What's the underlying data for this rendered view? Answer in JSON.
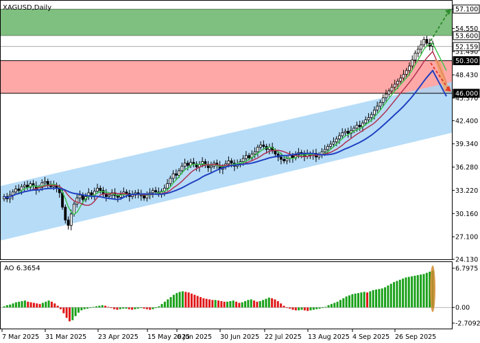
{
  "chart_data": [
    {
      "type": "candlestick",
      "symbol_label": "XAGUSD,Daily",
      "y_range": [
        24.13,
        58.2
      ],
      "y_ticks": [
        "57.100",
        "54.550",
        "51.490",
        "48.430",
        "45.370",
        "42.400",
        "39.340",
        "36.280",
        "33.220",
        "30.160",
        "27.100",
        "24.130"
      ],
      "x_ticks": [
        "7 Mar 2025",
        "31 Mar 2025",
        "23 Apr 2025",
        "15 May 2025",
        "6 Jun 2025",
        "30 Jun 2025",
        "22 Jul 2025",
        "13 Aug 2025",
        "4 Sep 2025",
        "26 Sep 2025"
      ],
      "price_markers": [
        {
          "label": "57.100",
          "value": 57.1,
          "style": "outline"
        },
        {
          "label": "53.600",
          "value": 53.6,
          "style": "outline"
        },
        {
          "label": "52.159",
          "value": 52.159,
          "style": "outline"
        },
        {
          "label": "50.300",
          "value": 50.3,
          "style": "dark"
        },
        {
          "label": "46.000",
          "value": 46.0,
          "style": "dark"
        }
      ],
      "zones": [
        {
          "name": "buy-zone",
          "from": 53.6,
          "to": 57.1,
          "color": "#7fbf7f"
        },
        {
          "name": "sell-zone",
          "from": 46.0,
          "to": 50.3,
          "color": "#ffa8a8"
        }
      ],
      "channel": {
        "color": "#a9d6f7",
        "upper_start": 33.8,
        "upper_end": 47.5,
        "lower_start": 26.6,
        "lower_end": 40.8
      },
      "candles_close": [
        32.4,
        32.1,
        32.6,
        33.0,
        33.4,
        33.2,
        33.7,
        33.9,
        33.6,
        34.1,
        33.8,
        33.3,
        33.6,
        34.2,
        34.4,
        34.0,
        33.7,
        33.9,
        33.5,
        32.9,
        31.0,
        29.3,
        28.6,
        30.1,
        31.4,
        32.2,
        32.6,
        32.0,
        32.4,
        32.9,
        32.6,
        33.1,
        33.5,
        33.2,
        32.8,
        32.4,
        32.6,
        32.9,
        32.5,
        32.3,
        32.7,
        33.0,
        32.8,
        32.4,
        32.6,
        32.9,
        32.7,
        32.5,
        32.2,
        32.6,
        32.9,
        33.2,
        33.0,
        32.8,
        33.1,
        33.5,
        34.1,
        34.8,
        35.4,
        35.2,
        35.8,
        36.4,
        36.8,
        36.5,
        36.9,
        36.7,
        36.3,
        36.6,
        37.0,
        36.6,
        36.2,
        36.4,
        36.8,
        36.5,
        36.0,
        36.3,
        36.7,
        37.1,
        36.8,
        36.4,
        36.7,
        37.0,
        37.4,
        37.8,
        37.5,
        38.0,
        38.3,
        38.9,
        39.2,
        39.0,
        38.6,
        38.9,
        38.4,
        38.0,
        37.6,
        37.3,
        37.1,
        37.4,
        37.8,
        37.5,
        37.9,
        38.2,
        38.0,
        37.7,
        38.0,
        37.8,
        38.1,
        37.6,
        37.9,
        38.3,
        38.6,
        39.0,
        39.3,
        39.6,
        40.0,
        40.4,
        40.8,
        41.0,
        40.7,
        41.1,
        41.4,
        41.8,
        41.6,
        42.1,
        42.5,
        42.8,
        43.2,
        43.8,
        44.3,
        44.8,
        45.4,
        45.9,
        46.3,
        46.8,
        47.2,
        47.6,
        48.0,
        48.5,
        49.0,
        49.6,
        50.4,
        51.3,
        51.8,
        52.4,
        53.1,
        52.6,
        52.2,
        52.6
      ],
      "ma_green_end": 49.0,
      "ma_red_end": 47.4,
      "ma_blue_end": 45.6,
      "forecast": [
        {
          "direction": "up",
          "from": 52.9,
          "to": 57.1,
          "color": "#2e8b2e"
        },
        {
          "direction": "down",
          "from": 50.0,
          "to": 46.2,
          "color": "#e0402a"
        }
      ]
    },
    {
      "type": "bar",
      "indicator_label": "AO 6.3654",
      "y_range": [
        -2.7092,
        6.7975
      ],
      "y_ticks": [
        "6.7975",
        "0.00",
        "-2.7092"
      ],
      "values": [
        0.2,
        0.4,
        0.5,
        0.7,
        0.9,
        1.0,
        1.1,
        1.2,
        1.0,
        0.9,
        0.8,
        0.7,
        0.6,
        0.8,
        1.0,
        1.2,
        1.0,
        0.7,
        0.3,
        -0.3,
        -1.0,
        -1.8,
        -2.4,
        -2.2,
        -1.5,
        -0.9,
        -0.5,
        -0.3,
        -0.2,
        -0.1,
        0.1,
        0.2,
        0.3,
        0.4,
        0.3,
        0.1,
        -0.1,
        -0.3,
        -0.4,
        -0.3,
        -0.2,
        -0.2,
        -0.3,
        -0.4,
        -0.3,
        -0.2,
        -0.1,
        -0.2,
        -0.3,
        -0.4,
        -0.3,
        -0.1,
        0.2,
        0.6,
        1.0,
        1.4,
        1.8,
        2.2,
        2.5,
        2.7,
        2.8,
        2.7,
        2.6,
        2.4,
        2.2,
        2.0,
        1.8,
        1.6,
        1.5,
        1.4,
        1.3,
        1.3,
        1.2,
        1.1,
        1.0,
        1.0,
        1.1,
        1.2,
        1.0,
        0.8,
        0.9,
        1.1,
        1.3,
        1.4,
        1.2,
        1.0,
        1.1,
        1.3,
        1.5,
        1.7,
        1.6,
        1.4,
        1.1,
        0.7,
        0.3,
        0.0,
        -0.2,
        -0.4,
        -0.5,
        -0.5,
        -0.4,
        -0.5,
        -0.6,
        -0.5,
        -0.4,
        -0.3,
        -0.2,
        -0.1,
        0.1,
        0.4,
        0.6,
        0.8,
        1.0,
        1.3,
        1.6,
        1.9,
        2.1,
        2.3,
        2.4,
        2.5,
        2.6,
        2.7,
        2.6,
        2.8,
        3.0,
        3.1,
        3.2,
        3.3,
        3.5,
        3.8,
        4.1,
        4.4,
        4.6,
        4.8,
        5.0,
        5.2,
        5.3,
        5.4,
        5.5,
        5.6,
        5.7,
        5.8,
        6.0,
        6.2,
        6.37
      ]
    }
  ]
}
